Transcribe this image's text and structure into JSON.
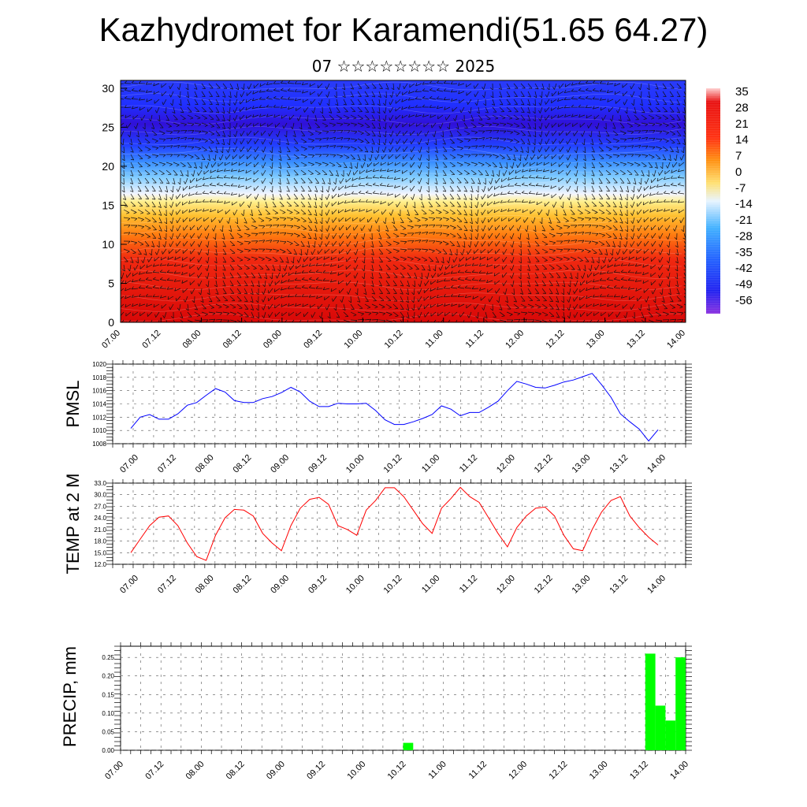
{
  "title": "Kazhydromet for Karamendi(51.65 64.27)",
  "subtitle": "07 ☆☆☆☆☆☆☆☆ 2025",
  "chart_data": [
    {
      "type": "heatmap",
      "name": "vertical-cross-section",
      "xlabel": "",
      "ylabel": "",
      "x_ticks": [
        "07.00",
        "07.12",
        "08.00",
        "08.12",
        "09.00",
        "09.12",
        "10.00",
        "10.12",
        "11.00",
        "11.12",
        "12.00",
        "12.12",
        "13.00",
        "13.12",
        "14.00"
      ],
      "y_ticks": [
        "0",
        "5",
        "10",
        "15",
        "20",
        "25",
        "30"
      ],
      "ylim": [
        0,
        31
      ],
      "colorbar_labels": [
        "35",
        "28",
        "21",
        "14",
        "7",
        "0",
        "-7",
        "-14",
        "-21",
        "-28",
        "-35",
        "-42",
        "-49",
        "-56"
      ],
      "colors": {
        "hot": "#e01010",
        "warm": "#ff9a10",
        "mild": "#ffe070",
        "cool": "#e8f0ff",
        "cold": "#60b8ff",
        "freezing": "#2040ff",
        "deep": "#4a10d0"
      }
    },
    {
      "type": "line",
      "name": "PMSL",
      "ylabel": "PMSL",
      "color": "#0000ff",
      "ylim": [
        1008,
        1020
      ],
      "y_ticks": [
        "1008",
        "1010",
        "1012",
        "1014",
        "1016",
        "1018",
        "1020"
      ],
      "x_ticks": [
        "07.00",
        "07.12",
        "08.00",
        "08.12",
        "09.00",
        "09.12",
        "10.00",
        "10.12",
        "11.00",
        "11.12",
        "12.00",
        "12.12",
        "13.00",
        "13.12",
        "14.00"
      ],
      "values": [
        1010.3,
        1012.0,
        1012.4,
        1011.7,
        1011.7,
        1012.5,
        1013.8,
        1014.2,
        1015.3,
        1016.3,
        1015.8,
        1014.5,
        1014.2,
        1014.2,
        1014.8,
        1015.1,
        1015.7,
        1016.5,
        1015.8,
        1014.4,
        1013.6,
        1013.6,
        1014.1,
        1014.0,
        1014.0,
        1014.1,
        1013.0,
        1011.6,
        1010.9,
        1010.9,
        1011.3,
        1011.8,
        1012.4,
        1013.7,
        1013.2,
        1012.2,
        1012.7,
        1012.7,
        1013.5,
        1014.4,
        1016.0,
        1017.4,
        1017.0,
        1016.5,
        1016.4,
        1016.8,
        1017.3,
        1017.6,
        1018.1,
        1018.6,
        1016.9,
        1015.0,
        1012.5,
        1011.3,
        1010.2,
        1008.4,
        1010.1
      ]
    },
    {
      "type": "line",
      "name": "TEMP at 2 M",
      "ylabel": "TEMP at 2 M",
      "color": "#ff0000",
      "ylim": [
        12,
        33
      ],
      "y_ticks": [
        "12.0",
        "15.0",
        "18.0",
        "21.0",
        "24.0",
        "27.0",
        "30.0",
        "33.0"
      ],
      "x_ticks": [
        "07.00",
        "07.12",
        "08.00",
        "08.12",
        "09.00",
        "09.12",
        "10.00",
        "10.12",
        "11.00",
        "11.12",
        "12.00",
        "12.12",
        "13.00",
        "13.12",
        "14.00"
      ],
      "values": [
        15.0,
        18.5,
        22.0,
        24.2,
        24.5,
        22.0,
        17.5,
        14.0,
        13.0,
        19.5,
        24.0,
        26.2,
        26.0,
        24.5,
        20.0,
        17.5,
        15.5,
        22.0,
        26.5,
        28.8,
        29.3,
        27.5,
        22.0,
        21.0,
        19.5,
        26.0,
        28.5,
        31.8,
        31.8,
        29.5,
        26.0,
        22.5,
        20.0,
        26.5,
        29.0,
        31.9,
        29.5,
        28.0,
        24.0,
        20.0,
        16.5,
        21.5,
        24.5,
        26.5,
        26.8,
        24.5,
        19.5,
        16.0,
        15.5,
        21.0,
        25.5,
        28.5,
        29.5,
        24.5,
        21.5,
        19.0,
        17.0
      ]
    },
    {
      "type": "bar",
      "name": "PRECIP, mm",
      "ylabel": "PRECIP, mm",
      "color": "#00ff00",
      "ylim": [
        0,
        0.28
      ],
      "y_ticks": [
        "0.00",
        "0.05",
        "0.10",
        "0.15",
        "0.20",
        "0.25"
      ],
      "x_ticks": [
        "07.00",
        "07.12",
        "08.00",
        "08.12",
        "09.00",
        "09.12",
        "10.00",
        "10.12",
        "11.00",
        "11.12",
        "12.00",
        "12.12",
        "13.00",
        "13.12",
        "14.00"
      ],
      "bars": [
        {
          "x": 10.12,
          "value": 0.02
        },
        {
          "x": 13.12,
          "value": 0.26
        },
        {
          "x": 13.15,
          "value": 0.12
        },
        {
          "x": 13.18,
          "value": 0.08
        },
        {
          "x": 13.21,
          "value": 0.25
        }
      ]
    }
  ]
}
